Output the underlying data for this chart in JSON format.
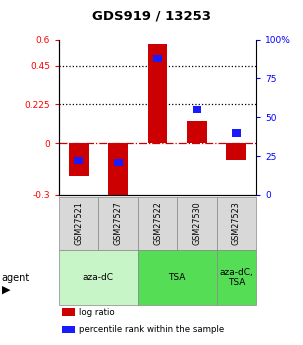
{
  "title": "GDS919 / 13253",
  "samples": [
    "GSM27521",
    "GSM27527",
    "GSM27522",
    "GSM27530",
    "GSM27523"
  ],
  "log_ratios": [
    -0.19,
    -0.3,
    0.575,
    0.13,
    -0.095
  ],
  "percentile_ranks": [
    22,
    21,
    88,
    55,
    40
  ],
  "ylim_left": [
    -0.3,
    0.6
  ],
  "ylim_right": [
    0,
    100
  ],
  "yticks_left": [
    -0.3,
    0,
    0.225,
    0.45,
    0.6
  ],
  "yticks_right": [
    0,
    25,
    50,
    75,
    100
  ],
  "ytick_labels_left": [
    "-0.3",
    "0",
    "0.225",
    "0.45",
    "0.6"
  ],
  "ytick_labels_right": [
    "0",
    "25",
    "50",
    "75",
    "100%"
  ],
  "hlines": [
    0.225,
    0.45
  ],
  "bar_color": "#cc0000",
  "square_color": "#1a1aff",
  "zero_line_color": "#cc0000",
  "bar_width": 0.5,
  "agent_spans": [
    {
      "label": "aza-dC",
      "start": 0,
      "end": 2,
      "color": "#c8f5c8"
    },
    {
      "label": "TSA",
      "start": 2,
      "end": 4,
      "color": "#55dd55"
    },
    {
      "label": "aza-dC,\nTSA",
      "start": 4,
      "end": 5,
      "color": "#55dd55"
    }
  ],
  "legend_items": [
    {
      "color": "#cc0000",
      "label": "log ratio"
    },
    {
      "color": "#1a1aff",
      "label": "percentile rank within the sample"
    }
  ]
}
